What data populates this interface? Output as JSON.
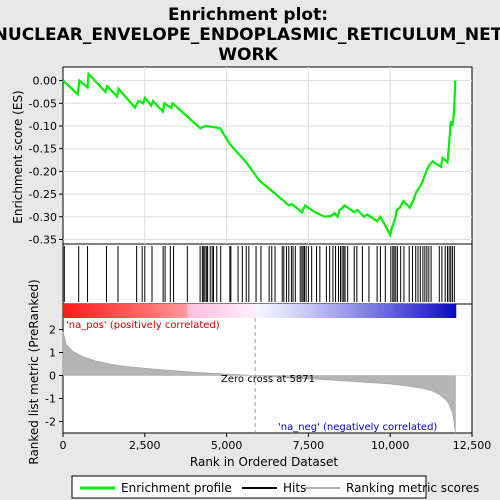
{
  "chart_data": {
    "type": "line",
    "title_line1": "Enrichment plot:",
    "title_line2": "NUCLEAR_ENVELOPE_ENDOPLASMIC_RETICULUM_NET",
    "title_line3": "WORK",
    "top_panel": {
      "ylabel": "Enrichment score (ES)",
      "ylim": [
        -0.36,
        0.03
      ],
      "yticks": [
        0.0,
        -0.05,
        -0.1,
        -0.15,
        -0.2,
        -0.25,
        -0.3,
        -0.35
      ],
      "ytick_labels": [
        "0.00",
        "-0.05",
        "-0.10",
        "-0.15",
        "-0.20",
        "-0.25",
        "-0.30",
        "-0.35"
      ],
      "series": [
        {
          "name": "Enrichment profile",
          "color": "#00ee00",
          "x": [
            0,
            450,
            500,
            750,
            780,
            1300,
            1350,
            1650,
            1700,
            2200,
            2300,
            2450,
            2500,
            2700,
            2750,
            3050,
            3100,
            3300,
            3350,
            4200,
            4350,
            4400,
            4800,
            5100,
            5600,
            6000,
            6500,
            6900,
            7000,
            7300,
            7400,
            7700,
            8000,
            8200,
            8300,
            8400,
            8450,
            8550,
            8600,
            8900,
            9000,
            9200,
            9300,
            9600,
            9700,
            10000,
            10050,
            10150,
            10200,
            10300,
            10400,
            10600,
            10700,
            10800,
            10900,
            11000,
            11100,
            11200,
            11300,
            11550,
            11600,
            11750,
            11800,
            11850,
            11900,
            11950,
            11990
          ],
          "y": [
            0.0,
            -0.03,
            0.0,
            -0.015,
            0.015,
            -0.025,
            -0.012,
            -0.035,
            -0.018,
            -0.06,
            -0.045,
            -0.05,
            -0.038,
            -0.055,
            -0.045,
            -0.068,
            -0.05,
            -0.06,
            -0.05,
            -0.105,
            -0.1,
            -0.1,
            -0.105,
            -0.14,
            -0.18,
            -0.22,
            -0.25,
            -0.275,
            -0.272,
            -0.29,
            -0.275,
            -0.29,
            -0.3,
            -0.298,
            -0.292,
            -0.3,
            -0.285,
            -0.28,
            -0.275,
            -0.29,
            -0.285,
            -0.3,
            -0.295,
            -0.31,
            -0.3,
            -0.34,
            -0.325,
            -0.305,
            -0.285,
            -0.28,
            -0.265,
            -0.28,
            -0.265,
            -0.245,
            -0.235,
            -0.22,
            -0.2,
            -0.185,
            -0.178,
            -0.19,
            -0.17,
            -0.18,
            -0.14,
            -0.09,
            -0.1,
            -0.07,
            0.0
          ]
        }
      ],
      "hits": [
        40,
        480,
        750,
        1330,
        1680,
        2250,
        2420,
        2500,
        2720,
        3060,
        3120,
        3280,
        3380,
        3800,
        4190,
        4260,
        4300,
        4340,
        4390,
        4420,
        4500,
        4560,
        4600,
        4700,
        4820,
        5100,
        5130,
        5350,
        5480,
        5600,
        5680,
        5900,
        6050,
        6300,
        6380,
        6480,
        6700,
        6750,
        6830,
        6900,
        6980,
        7030,
        7100,
        7250,
        7300,
        7340,
        7380,
        7430,
        7500,
        7600,
        7750,
        7850,
        8050,
        8150,
        8250,
        8330,
        8420,
        8480,
        8530,
        8580,
        8620,
        8700,
        8900,
        8980,
        9150,
        9350,
        9600,
        9700,
        9850,
        10020,
        10080,
        10120,
        10170,
        10220,
        10320,
        10420,
        10580,
        10680,
        10780,
        10850,
        10920,
        11000,
        11060,
        11120,
        11180,
        11250,
        11500,
        11580,
        11680,
        11750,
        11800,
        11850,
        11900,
        11960
      ]
    },
    "bottom_panel": {
      "ylabel": "Ranked list metric (PreRanked)",
      "ylim": [
        -2.5,
        2.5
      ],
      "yticks": [
        2,
        1,
        0,
        -1,
        -2
      ],
      "ytick_labels": [
        "2",
        "1",
        "0",
        "-1",
        "-2"
      ],
      "zero_cross_label": "Zero cross at 5871",
      "zero_cross_x": 5871,
      "pos_label": "'na_pos' (positively correlated)",
      "neg_label": "'na_neg' (negatively correlated)",
      "metric_x": [
        0,
        100,
        300,
        600,
        1000,
        1500,
        2000,
        3000,
        4000,
        5000,
        5871,
        7000,
        8000,
        9000,
        10000,
        10500,
        11000,
        11300,
        11500,
        11700,
        11800,
        11900,
        11950,
        11990
      ],
      "metric_y": [
        1.9,
        1.35,
        1.05,
        0.82,
        0.63,
        0.48,
        0.38,
        0.25,
        0.14,
        0.06,
        0.0,
        -0.1,
        -0.18,
        -0.27,
        -0.37,
        -0.45,
        -0.56,
        -0.68,
        -0.82,
        -1.05,
        -1.25,
        -1.6,
        -2.0,
        -2.5
      ]
    },
    "xlabel": "Rank in Ordered Dataset",
    "xlim": [
      0,
      12500
    ],
    "xticks": [
      0,
      2500,
      5000,
      7500,
      10000,
      12500
    ],
    "xtick_labels": [
      "0",
      "2,500",
      "5,000",
      "7,500",
      "10,000",
      "12,500"
    ],
    "legend": {
      "placement": "bottom",
      "entries": [
        "Enrichment profile",
        "Hits",
        "Ranking metric scores"
      ],
      "colors": [
        "#00ee00",
        "#000000",
        "#b0b0b0"
      ]
    },
    "colors": {
      "profile": "#00ee00",
      "metric_fill": "#b4b4b4",
      "pos_label": "#cc0000",
      "neg_label": "#0000cc"
    }
  }
}
